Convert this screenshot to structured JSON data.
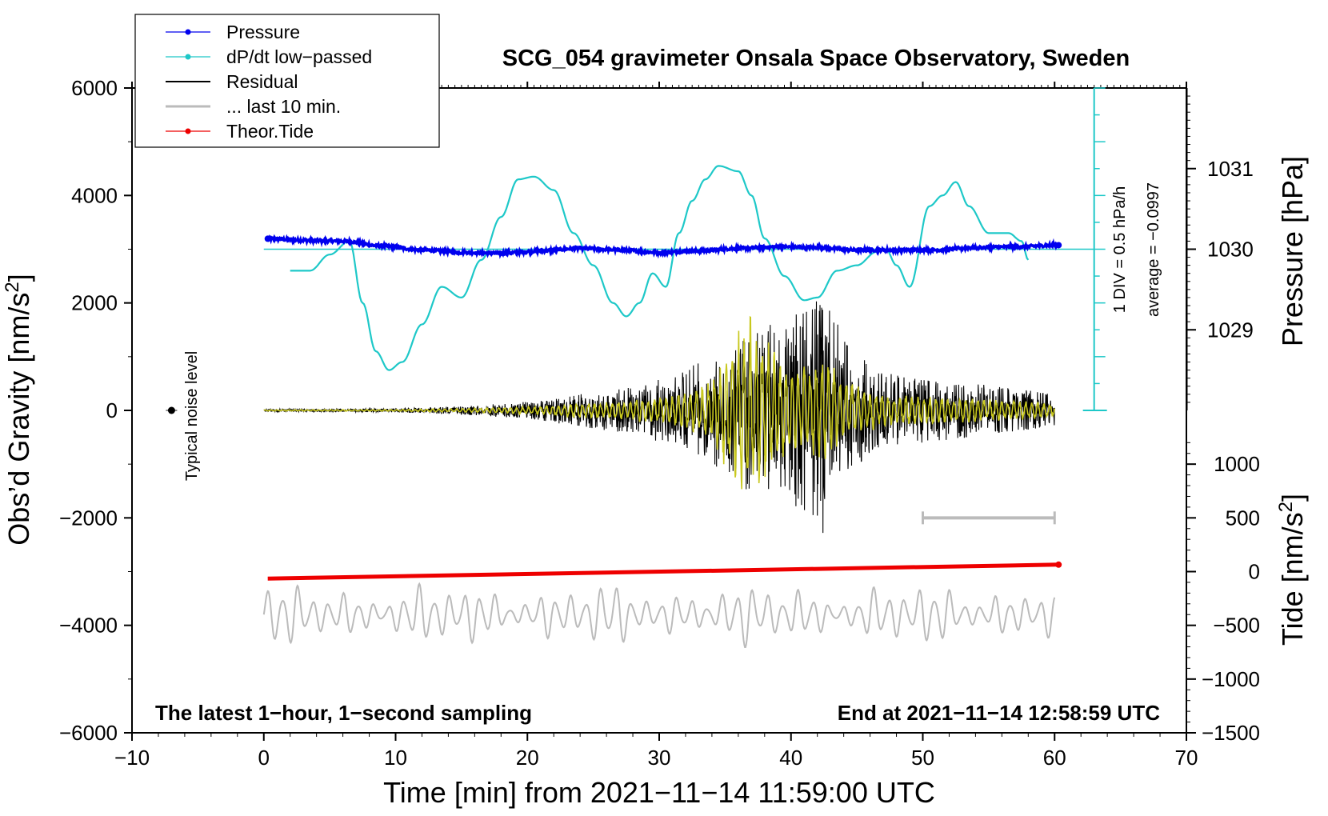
{
  "colors": {
    "pressure": "#0000ee",
    "dpdt": "#1ec8c8",
    "residual": "#000000",
    "last10": "#bbbbbb",
    "tide": "#ee0000",
    "filtered": "#c8c81e"
  },
  "legend": {
    "pressure": "Pressure",
    "dpdt": "dP/dt low−passed",
    "residual": "Residual",
    "last10": "... last 10 min.",
    "tide": "Theor.Tide"
  },
  "labels": {
    "title": "SCG_054 gravimeter Onsala Space Observatory, Sweden",
    "note_left": "The latest 1−hour, 1−second sampling",
    "note_right": "End at 2021−11−14 12:58:59 UTC",
    "noise_label": "Typical noise level",
    "div_label": "1 DIV = 0.5 hPa/h",
    "avg_label": "average = −0.0997",
    "xlabel": "Time [min] from 2021−11−14 11:59:00 UTC",
    "ylabel_left_main": "Obs’d Gravity [nm/s",
    "ylabel_left_sup": "2",
    "ylabel_left_end": "]",
    "ylabel_pressure": "Pressure [hPa]",
    "ylabel_tide_main": "Tide [nm/s",
    "ylabel_tide_sup": "2",
    "ylabel_tide_end": "]"
  },
  "chart_data": {
    "type": "line",
    "xlim": [
      -10,
      70
    ],
    "ylim": [
      -6000,
      6000
    ],
    "xticks": [
      "−10",
      "0",
      "10",
      "20",
      "30",
      "40",
      "50",
      "60",
      "70"
    ],
    "xtick_values": [
      -10,
      0,
      10,
      20,
      30,
      40,
      50,
      60,
      70
    ],
    "yticks": [
      "−6000",
      "−4000",
      "−2000",
      "0",
      "2000",
      "4000",
      "6000"
    ],
    "ytick_values": [
      -6000,
      -4000,
      -2000,
      0,
      2000,
      4000,
      6000
    ],
    "pressure_axis": {
      "ticks": [
        "1029",
        "1030",
        "1031"
      ],
      "tick_values": [
        1029,
        1030,
        1031
      ],
      "ref_hpa": 1030,
      "ref_gravity_units": 3000,
      "units_per_hpa": 1500
    },
    "tide_axis": {
      "ticks": [
        "−1500",
        "−1000",
        "−500",
        "0",
        "500",
        "1000"
      ],
      "tick_values": [
        -1500,
        -1000,
        -500,
        0,
        500,
        1000
      ],
      "scale": 2,
      "offset": -3000
    },
    "dpdt_axis": {
      "x_min": 63,
      "zero_gravity": 0,
      "top_gravity": 6000,
      "divisions": 12,
      "units_per_div": 500
    },
    "series": [
      {
        "name": "Pressure",
        "unit": "hPa",
        "x": [
          0.3,
          3,
          6,
          9,
          12,
          15,
          18,
          21,
          24,
          27,
          30,
          33,
          36,
          39,
          42,
          45,
          48,
          51,
          54,
          57,
          60.3
        ],
        "values": [
          1030.13,
          1030.11,
          1030.1,
          1030.04,
          1029.99,
          1029.96,
          1029.95,
          1029.98,
          1030.01,
          1029.99,
          1029.96,
          1029.98,
          1030.01,
          1030.03,
          1030.02,
          1029.99,
          1029.99,
          1029.99,
          1030.02,
          1030.03,
          1030.05
        ]
      },
      {
        "name": "dP/dt low−passed",
        "unit": "gravity-axis units (1 DIV = 0.5 hPa/h, 500 units)",
        "x": [
          2,
          3.5,
          5,
          6.5,
          7.5,
          8.5,
          9.5,
          10.5,
          12,
          13.5,
          15,
          16.5,
          18,
          19.3,
          20.5,
          22,
          23.5,
          25,
          26.5,
          27.5,
          28.5,
          29.5,
          30.5,
          31.5,
          32.5,
          33.5,
          34.5,
          36,
          37,
          38,
          39.5,
          41,
          42,
          43.5,
          45,
          46.5,
          47.2,
          48,
          49,
          50.5,
          51.5,
          52.5,
          53.5,
          55,
          56.5,
          57.5,
          58
        ],
        "values": [
          2600,
          2600,
          2900,
          3150,
          2000,
          1100,
          750,
          900,
          1600,
          2300,
          2100,
          2800,
          3600,
          4300,
          4350,
          4100,
          3300,
          2700,
          2000,
          1750,
          2000,
          2550,
          2300,
          3300,
          3900,
          4300,
          4550,
          4450,
          4000,
          3200,
          2500,
          2050,
          2100,
          2600,
          2700,
          2950,
          3000,
          2700,
          2300,
          3800,
          4000,
          4250,
          3800,
          3300,
          3300,
          3150,
          2800
        ]
      },
      {
        "name": "Residual",
        "unit": "nm/s2",
        "x": [
          0,
          10,
          16,
          20,
          24,
          28,
          31,
          34,
          36.5,
          38,
          40,
          42.5,
          44,
          46,
          48,
          52,
          56,
          60
        ],
        "amplitude": [
          25,
          35,
          90,
          160,
          300,
          450,
          650,
          1000,
          1500,
          1600,
          1700,
          2300,
          1300,
          850,
          650,
          550,
          450,
          300
        ]
      },
      {
        "name": "... last 10 min.",
        "unit": "nm/s2",
        "note": "previous 10 minutes of residual, expanded over full time range",
        "center": -3800,
        "amplitude_range": [
          150,
          650
        ]
      },
      {
        "name": "Theor.Tide",
        "unit": "nm/s2",
        "x": [
          0.3,
          60.3
        ],
        "values": [
          -3130,
          -2870
        ]
      }
    ],
    "noise_marker": {
      "x": -7,
      "y": 0
    },
    "scale_bar": {
      "x_start": 50,
      "x_end": 60,
      "y": -2000
    }
  }
}
